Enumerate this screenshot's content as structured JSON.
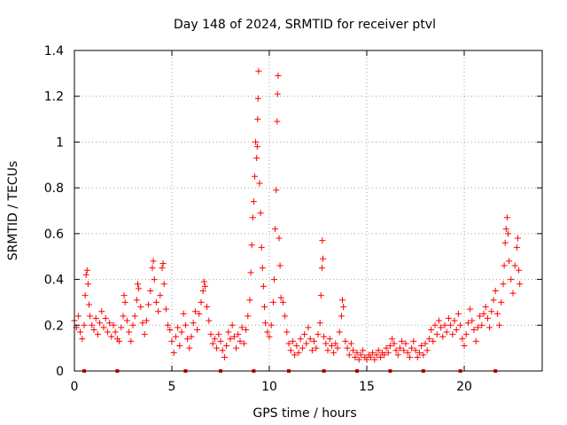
{
  "chart_data": {
    "type": "scatter",
    "title": "Day 148 of 2024, SRMTID for receiver ptvl",
    "xlabel": "GPS time / hours",
    "ylabel": "SRMTID / TECUs",
    "xlim": [
      0,
      24
    ],
    "ylim": [
      0,
      1.4
    ],
    "x_ticks": [
      0,
      5,
      10,
      15,
      20
    ],
    "x_tick_labels": [
      "0",
      "5",
      "10",
      "15",
      "20"
    ],
    "y_ticks": [
      0,
      0.2,
      0.4,
      0.6,
      0.8,
      1.0,
      1.2,
      1.4
    ],
    "y_tick_labels": [
      "0",
      "0.2",
      "0.4",
      "0.6",
      "0.8",
      "1",
      "1.2",
      "1.4"
    ],
    "grid": true,
    "series": [
      {
        "name": "SRMTID",
        "color": "#ff0000",
        "marker": "plus",
        "points": [
          [
            0.0,
            0.22
          ],
          [
            0.1,
            0.19
          ],
          [
            0.2,
            0.24
          ],
          [
            0.3,
            0.17
          ],
          [
            0.4,
            0.14
          ],
          [
            0.5,
            0.2
          ],
          [
            0.55,
            0.33
          ],
          [
            0.6,
            0.42
          ],
          [
            0.65,
            0.44
          ],
          [
            0.7,
            0.38
          ],
          [
            0.75,
            0.29
          ],
          [
            0.8,
            0.24
          ],
          [
            0.9,
            0.2
          ],
          [
            1.0,
            0.18
          ],
          [
            1.1,
            0.23
          ],
          [
            1.2,
            0.16
          ],
          [
            1.3,
            0.21
          ],
          [
            1.4,
            0.26
          ],
          [
            1.5,
            0.19
          ],
          [
            1.6,
            0.23
          ],
          [
            1.7,
            0.17
          ],
          [
            1.8,
            0.21
          ],
          [
            1.9,
            0.15
          ],
          [
            2.0,
            0.2
          ],
          [
            2.1,
            0.17
          ],
          [
            2.2,
            0.14
          ],
          [
            2.3,
            0.13
          ],
          [
            2.4,
            0.19
          ],
          [
            2.5,
            0.24
          ],
          [
            2.55,
            0.33
          ],
          [
            2.6,
            0.3
          ],
          [
            2.7,
            0.22
          ],
          [
            2.8,
            0.17
          ],
          [
            2.9,
            0.13
          ],
          [
            3.0,
            0.2
          ],
          [
            3.1,
            0.24
          ],
          [
            3.2,
            0.31
          ],
          [
            3.25,
            0.38
          ],
          [
            3.3,
            0.36
          ],
          [
            3.4,
            0.28
          ],
          [
            3.5,
            0.21
          ],
          [
            3.6,
            0.16
          ],
          [
            3.7,
            0.22
          ],
          [
            3.8,
            0.29
          ],
          [
            3.9,
            0.35
          ],
          [
            4.0,
            0.45
          ],
          [
            4.05,
            0.48
          ],
          [
            4.1,
            0.4
          ],
          [
            4.2,
            0.3
          ],
          [
            4.3,
            0.26
          ],
          [
            4.4,
            0.33
          ],
          [
            4.5,
            0.45
          ],
          [
            4.55,
            0.47
          ],
          [
            4.6,
            0.38
          ],
          [
            4.7,
            0.27
          ],
          [
            4.8,
            0.2
          ],
          [
            4.9,
            0.18
          ],
          [
            5.0,
            0.13
          ],
          [
            5.1,
            0.08
          ],
          [
            5.2,
            0.15
          ],
          [
            5.3,
            0.19
          ],
          [
            5.4,
            0.11
          ],
          [
            5.5,
            0.17
          ],
          [
            5.6,
            0.25
          ],
          [
            5.7,
            0.2
          ],
          [
            5.8,
            0.14
          ],
          [
            5.9,
            0.1
          ],
          [
            6.0,
            0.15
          ],
          [
            6.1,
            0.21
          ],
          [
            6.2,
            0.26
          ],
          [
            6.3,
            0.18
          ],
          [
            6.4,
            0.25
          ],
          [
            6.5,
            0.3
          ],
          [
            6.6,
            0.35
          ],
          [
            6.65,
            0.39
          ],
          [
            6.7,
            0.37
          ],
          [
            6.8,
            0.28
          ],
          [
            6.9,
            0.22
          ],
          [
            7.0,
            0.16
          ],
          [
            7.1,
            0.12
          ],
          [
            7.2,
            0.14
          ],
          [
            7.3,
            0.1
          ],
          [
            7.4,
            0.16
          ],
          [
            7.5,
            0.13
          ],
          [
            7.6,
            0.09
          ],
          [
            7.7,
            0.06
          ],
          [
            7.8,
            0.11
          ],
          [
            7.9,
            0.17
          ],
          [
            8.0,
            0.14
          ],
          [
            8.1,
            0.2
          ],
          [
            8.2,
            0.15
          ],
          [
            8.3,
            0.1
          ],
          [
            8.4,
            0.16
          ],
          [
            8.5,
            0.13
          ],
          [
            8.6,
            0.19
          ],
          [
            8.7,
            0.12
          ],
          [
            8.8,
            0.18
          ],
          [
            8.9,
            0.24
          ],
          [
            9.0,
            0.31
          ],
          [
            9.05,
            0.43
          ],
          [
            9.1,
            0.55
          ],
          [
            9.15,
            0.67
          ],
          [
            9.2,
            0.74
          ],
          [
            9.25,
            0.85
          ],
          [
            9.3,
            1.0
          ],
          [
            9.35,
            0.93
          ],
          [
            9.38,
            0.98
          ],
          [
            9.4,
            1.1
          ],
          [
            9.42,
            1.19
          ],
          [
            9.45,
            1.31
          ],
          [
            9.5,
            0.82
          ],
          [
            9.55,
            0.69
          ],
          [
            9.6,
            0.54
          ],
          [
            9.65,
            0.45
          ],
          [
            9.7,
            0.37
          ],
          [
            9.75,
            0.28
          ],
          [
            9.8,
            0.21
          ],
          [
            9.9,
            0.17
          ],
          [
            10.0,
            0.15
          ],
          [
            10.1,
            0.2
          ],
          [
            10.2,
            0.3
          ],
          [
            10.25,
            0.4
          ],
          [
            10.3,
            0.62
          ],
          [
            10.35,
            0.79
          ],
          [
            10.4,
            1.09
          ],
          [
            10.42,
            1.21
          ],
          [
            10.45,
            1.29
          ],
          [
            10.5,
            0.58
          ],
          [
            10.55,
            0.46
          ],
          [
            10.6,
            0.32
          ],
          [
            10.7,
            0.3
          ],
          [
            10.8,
            0.24
          ],
          [
            10.9,
            0.17
          ],
          [
            11.0,
            0.12
          ],
          [
            11.1,
            0.09
          ],
          [
            11.2,
            0.13
          ],
          [
            11.3,
            0.07
          ],
          [
            11.4,
            0.11
          ],
          [
            11.5,
            0.08
          ],
          [
            11.6,
            0.14
          ],
          [
            11.7,
            0.1
          ],
          [
            11.8,
            0.16
          ],
          [
            11.9,
            0.12
          ],
          [
            12.0,
            0.19
          ],
          [
            12.1,
            0.14
          ],
          [
            12.2,
            0.09
          ],
          [
            12.3,
            0.13
          ],
          [
            12.4,
            0.1
          ],
          [
            12.5,
            0.16
          ],
          [
            12.6,
            0.21
          ],
          [
            12.65,
            0.33
          ],
          [
            12.7,
            0.45
          ],
          [
            12.72,
            0.57
          ],
          [
            12.75,
            0.49
          ],
          [
            12.8,
            0.15
          ],
          [
            12.9,
            0.12
          ],
          [
            13.0,
            0.09
          ],
          [
            13.1,
            0.14
          ],
          [
            13.2,
            0.11
          ],
          [
            13.3,
            0.08
          ],
          [
            13.4,
            0.12
          ],
          [
            13.5,
            0.1
          ],
          [
            13.6,
            0.17
          ],
          [
            13.7,
            0.24
          ],
          [
            13.75,
            0.31
          ],
          [
            13.8,
            0.28
          ],
          [
            13.9,
            0.13
          ],
          [
            14.0,
            0.1
          ],
          [
            14.1,
            0.07
          ],
          [
            14.2,
            0.12
          ],
          [
            14.3,
            0.09
          ],
          [
            14.4,
            0.06
          ],
          [
            14.5,
            0.08
          ],
          [
            14.6,
            0.05
          ],
          [
            14.7,
            0.07
          ],
          [
            14.8,
            0.09
          ],
          [
            14.9,
            0.06
          ],
          [
            15.0,
            0.05
          ],
          [
            15.1,
            0.07
          ],
          [
            15.2,
            0.06
          ],
          [
            15.3,
            0.08
          ],
          [
            15.4,
            0.05
          ],
          [
            15.5,
            0.07
          ],
          [
            15.6,
            0.09
          ],
          [
            15.7,
            0.06
          ],
          [
            15.8,
            0.08
          ],
          [
            15.9,
            0.07
          ],
          [
            16.0,
            0.1
          ],
          [
            16.1,
            0.08
          ],
          [
            16.2,
            0.11
          ],
          [
            16.3,
            0.14
          ],
          [
            16.4,
            0.12
          ],
          [
            16.5,
            0.09
          ],
          [
            16.6,
            0.07
          ],
          [
            16.7,
            0.1
          ],
          [
            16.8,
            0.13
          ],
          [
            16.9,
            0.09
          ],
          [
            17.0,
            0.12
          ],
          [
            17.1,
            0.08
          ],
          [
            17.2,
            0.06
          ],
          [
            17.3,
            0.1
          ],
          [
            17.4,
            0.13
          ],
          [
            17.5,
            0.09
          ],
          [
            17.6,
            0.06
          ],
          [
            17.7,
            0.08
          ],
          [
            17.8,
            0.11
          ],
          [
            17.9,
            0.07
          ],
          [
            18.0,
            0.12
          ],
          [
            18.1,
            0.09
          ],
          [
            18.2,
            0.14
          ],
          [
            18.3,
            0.18
          ],
          [
            18.4,
            0.13
          ],
          [
            18.5,
            0.2
          ],
          [
            18.6,
            0.16
          ],
          [
            18.7,
            0.22
          ],
          [
            18.8,
            0.19
          ],
          [
            18.9,
            0.15
          ],
          [
            19.0,
            0.2
          ],
          [
            19.1,
            0.17
          ],
          [
            19.2,
            0.23
          ],
          [
            19.3,
            0.2
          ],
          [
            19.4,
            0.16
          ],
          [
            19.5,
            0.22
          ],
          [
            19.6,
            0.18
          ],
          [
            19.7,
            0.25
          ],
          [
            19.8,
            0.2
          ],
          [
            19.9,
            0.14
          ],
          [
            20.0,
            0.11
          ],
          [
            20.1,
            0.16
          ],
          [
            20.2,
            0.21
          ],
          [
            20.3,
            0.27
          ],
          [
            20.4,
            0.22
          ],
          [
            20.5,
            0.18
          ],
          [
            20.6,
            0.13
          ],
          [
            20.7,
            0.19
          ],
          [
            20.8,
            0.24
          ],
          [
            20.9,
            0.2
          ],
          [
            21.0,
            0.25
          ],
          [
            21.1,
            0.28
          ],
          [
            21.2,
            0.23
          ],
          [
            21.3,
            0.19
          ],
          [
            21.4,
            0.26
          ],
          [
            21.5,
            0.31
          ],
          [
            21.6,
            0.35
          ],
          [
            21.7,
            0.25
          ],
          [
            21.8,
            0.2
          ],
          [
            21.9,
            0.3
          ],
          [
            22.0,
            0.38
          ],
          [
            22.05,
            0.46
          ],
          [
            22.1,
            0.56
          ],
          [
            22.15,
            0.62
          ],
          [
            22.2,
            0.67
          ],
          [
            22.25,
            0.6
          ],
          [
            22.3,
            0.48
          ],
          [
            22.4,
            0.4
          ],
          [
            22.5,
            0.34
          ],
          [
            22.6,
            0.46
          ],
          [
            22.7,
            0.54
          ],
          [
            22.75,
            0.58
          ],
          [
            22.8,
            0.44
          ],
          [
            22.85,
            0.38
          ]
        ]
      }
    ],
    "bottom_markers_x": [
      0.5,
      2.2,
      5.7,
      7.5,
      9.2,
      11.0,
      12.8,
      14.5,
      16.2,
      17.9,
      19.8,
      21.6
    ]
  }
}
